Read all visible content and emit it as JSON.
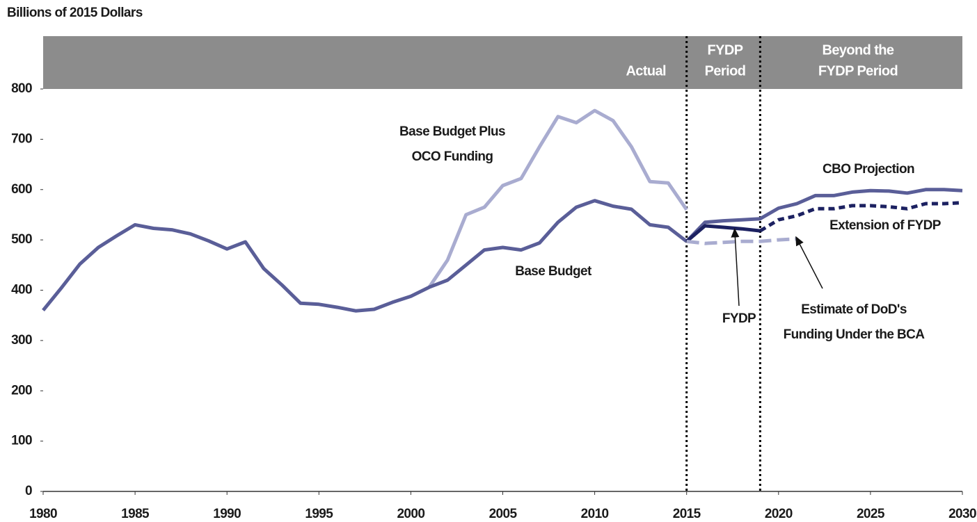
{
  "chart_data": {
    "type": "line",
    "ylabel": "Billions of 2015 Dollars",
    "x": [
      1980,
      1981,
      1982,
      1983,
      1984,
      1985,
      1986,
      1987,
      1988,
      1989,
      1990,
      1991,
      1992,
      1993,
      1994,
      1995,
      1996,
      1997,
      1998,
      1999,
      2000,
      2001,
      2002,
      2003,
      2004,
      2005,
      2006,
      2007,
      2008,
      2009,
      2010,
      2011,
      2012,
      2013,
      2014,
      2015,
      2016,
      2017,
      2018,
      2019,
      2020,
      2021,
      2022,
      2023,
      2024,
      2025,
      2026,
      2027,
      2028,
      2029,
      2030
    ],
    "series": [
      {
        "name": "Base Budget Plus OCO Funding",
        "color": "#a9acd0",
        "dash": false,
        "values": [
          null,
          null,
          null,
          null,
          null,
          null,
          null,
          null,
          null,
          null,
          null,
          null,
          null,
          null,
          null,
          null,
          null,
          null,
          null,
          null,
          null,
          406,
          460,
          550,
          565,
          608,
          622,
          685,
          745,
          733,
          757,
          737,
          685,
          616,
          613,
          560,
          null,
          null,
          null,
          null,
          null,
          null,
          null,
          null,
          null,
          null,
          null,
          null,
          null,
          null,
          null
        ]
      },
      {
        "name": "Base Budget",
        "color": "#5a5e98",
        "dash": false,
        "values": [
          360,
          405,
          452,
          485,
          508,
          530,
          523,
          520,
          512,
          498,
          482,
          496,
          443,
          410,
          374,
          372,
          366,
          359,
          362,
          376,
          388,
          406,
          420,
          450,
          480,
          485,
          480,
          494,
          535,
          565,
          578,
          567,
          561,
          530,
          525,
          497,
          null,
          null,
          null,
          null,
          null,
          null,
          null,
          null,
          null,
          null,
          null,
          null,
          null,
          null,
          null
        ]
      },
      {
        "name": "CBO Projection",
        "color": "#5a5e98",
        "dash": false,
        "values": [
          null,
          null,
          null,
          null,
          null,
          null,
          null,
          null,
          null,
          null,
          null,
          null,
          null,
          null,
          null,
          null,
          null,
          null,
          null,
          null,
          null,
          null,
          null,
          null,
          null,
          null,
          null,
          null,
          null,
          null,
          null,
          null,
          null,
          null,
          null,
          497,
          535,
          538,
          540,
          542,
          563,
          572,
          588,
          588,
          595,
          598,
          597,
          593,
          600,
          600,
          598
        ]
      },
      {
        "name": "FYDP",
        "color": "#1c2161",
        "dash": false,
        "values": [
          null,
          null,
          null,
          null,
          null,
          null,
          null,
          null,
          null,
          null,
          null,
          null,
          null,
          null,
          null,
          null,
          null,
          null,
          null,
          null,
          null,
          null,
          null,
          null,
          null,
          null,
          null,
          null,
          null,
          null,
          null,
          null,
          null,
          null,
          null,
          497,
          528,
          525,
          522,
          518,
          null,
          null,
          null,
          null,
          null,
          null,
          null,
          null,
          null,
          null,
          null
        ]
      },
      {
        "name": "Extension of FYDP",
        "color": "#1c2161",
        "dash": true,
        "values": [
          null,
          null,
          null,
          null,
          null,
          null,
          null,
          null,
          null,
          null,
          null,
          null,
          null,
          null,
          null,
          null,
          null,
          null,
          null,
          null,
          null,
          null,
          null,
          null,
          null,
          null,
          null,
          null,
          null,
          null,
          null,
          null,
          null,
          null,
          null,
          null,
          null,
          null,
          null,
          518,
          540,
          548,
          562,
          562,
          568,
          568,
          566,
          562,
          572,
          572,
          574
        ]
      },
      {
        "name": "Estimate of DoD's Funding Under the BCA",
        "color": "#a9acd0",
        "dash": true,
        "values": [
          null,
          null,
          null,
          null,
          null,
          null,
          null,
          null,
          null,
          null,
          null,
          null,
          null,
          null,
          null,
          null,
          null,
          null,
          null,
          null,
          null,
          null,
          null,
          null,
          null,
          null,
          null,
          null,
          null,
          null,
          null,
          null,
          null,
          null,
          null,
          497,
          493,
          495,
          497,
          497,
          500,
          502,
          null,
          null,
          null,
          null,
          null,
          null,
          null,
          null,
          null
        ]
      }
    ],
    "annotations": [
      {
        "lines": [
          "Base Budget Plus",
          "OCO Funding"
        ]
      },
      {
        "lines": [
          "Base Budget"
        ]
      },
      {
        "lines": [
          "CBO Projection"
        ]
      },
      {
        "lines": [
          "FYDP"
        ]
      },
      {
        "lines": [
          "Extension of FYDP"
        ]
      },
      {
        "lines": [
          "Estimate of DoD's",
          "Funding Under the BCA"
        ]
      }
    ],
    "periods": [
      {
        "lines": [
          "Actual"
        ]
      },
      {
        "lines": [
          "FYDP",
          "Period"
        ]
      },
      {
        "lines": [
          "Beyond the",
          "FYDP Period"
        ]
      }
    ],
    "period_dividers": [
      2015,
      2019
    ],
    "xlim": [
      1980,
      2030
    ],
    "xticks": [
      1980,
      1985,
      1990,
      1995,
      2000,
      2005,
      2010,
      2015,
      2020,
      2025,
      2030
    ],
    "ylim": [
      0,
      800
    ],
    "yticks": [
      0,
      100,
      200,
      300,
      400,
      500,
      600,
      700,
      800
    ],
    "grid": false
  }
}
